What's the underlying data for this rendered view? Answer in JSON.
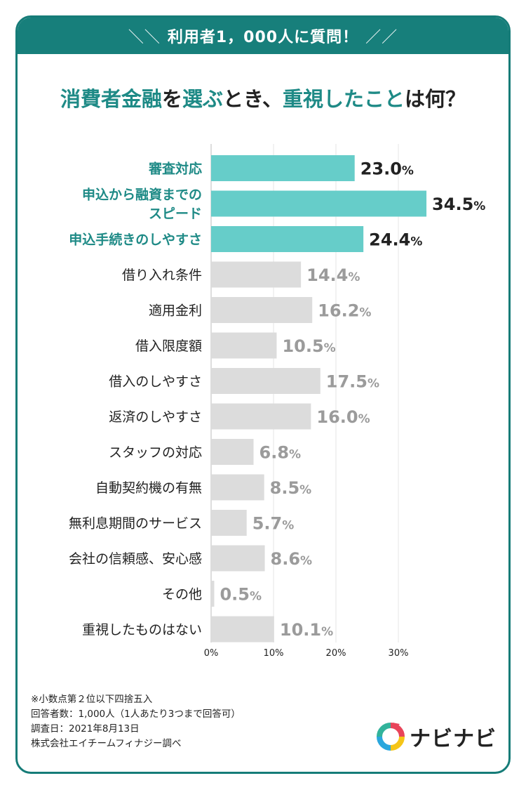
{
  "header": {
    "banner_text": "利用者1，000人に質問！",
    "title_part1": "消費者金融",
    "title_part2": "を",
    "title_part3": "選ぶ",
    "title_part4": "とき、",
    "title_part5": "重視したこと",
    "title_part6": "は何？"
  },
  "chart_data": {
    "type": "bar",
    "orientation": "horizontal",
    "categories": [
      "審査対応",
      "申込から融資までのスピード",
      "申込手続きのしやすさ",
      "借り入れ条件",
      "適用金利",
      "借入限度額",
      "借入のしやすさ",
      "返済のしやすさ",
      "スタッフの対応",
      "自動契約機の有無",
      "無利息期間のサービス",
      "会社の信頼感、安心感",
      "その他",
      "重視したものはない"
    ],
    "category_lines": [
      [
        "審査対応"
      ],
      [
        "申込から融資までの",
        "スピード"
      ],
      [
        "申込手続きのしやすさ"
      ],
      [
        "借り入れ条件"
      ],
      [
        "適用金利"
      ],
      [
        "借入限度額"
      ],
      [
        "借入のしやすさ"
      ],
      [
        "返済のしやすさ"
      ],
      [
        "スタッフの対応"
      ],
      [
        "自動契約機の有無"
      ],
      [
        "無利息期間のサービス"
      ],
      [
        "会社の信頼感、安心感"
      ],
      [
        "その他"
      ],
      [
        "重視したものはない"
      ]
    ],
    "values": [
      23.0,
      34.5,
      24.4,
      14.4,
      16.2,
      10.5,
      17.5,
      16.0,
      6.8,
      8.5,
      5.7,
      8.6,
      0.5,
      10.1
    ],
    "value_labels": [
      "23.0",
      "34.5",
      "24.4",
      "14.4",
      "16.2",
      "10.5",
      "17.5",
      "16.0",
      "6.8",
      "8.5",
      "5.7",
      "8.6",
      "0.5",
      "10.1"
    ],
    "unit": "%",
    "highlight_count": 3,
    "xlim": [
      0,
      30
    ],
    "x_ticks": [
      0,
      10,
      20,
      30
    ],
    "x_tick_labels": [
      "0%",
      "10%",
      "20%",
      "30%"
    ],
    "grid": true,
    "colors": {
      "highlight_bar": "#66cdc9",
      "highlight_text": "#1e8a86",
      "highlight_value": "#222222",
      "normal_bar": "#dcdcdc",
      "normal_text": "#222222",
      "normal_value": "#9b9b9b"
    }
  },
  "notes": {
    "line1": "※小数点第２位以下四捨五入",
    "line2": "回答者数：1,000人（1人あたり3つまで回答可）",
    "line3": "調査日：2021年8月13日",
    "line4": "株式会社エイチームフィナジー調べ"
  },
  "logo": {
    "text": "ナビナビ",
    "icon": "navinavi-logo-icon",
    "colors": [
      "#e8445a",
      "#f5c518",
      "#2aa7dd",
      "#32b39b"
    ]
  },
  "theme": {
    "border_color": "#167c78",
    "banner_color": "#177f7b"
  }
}
